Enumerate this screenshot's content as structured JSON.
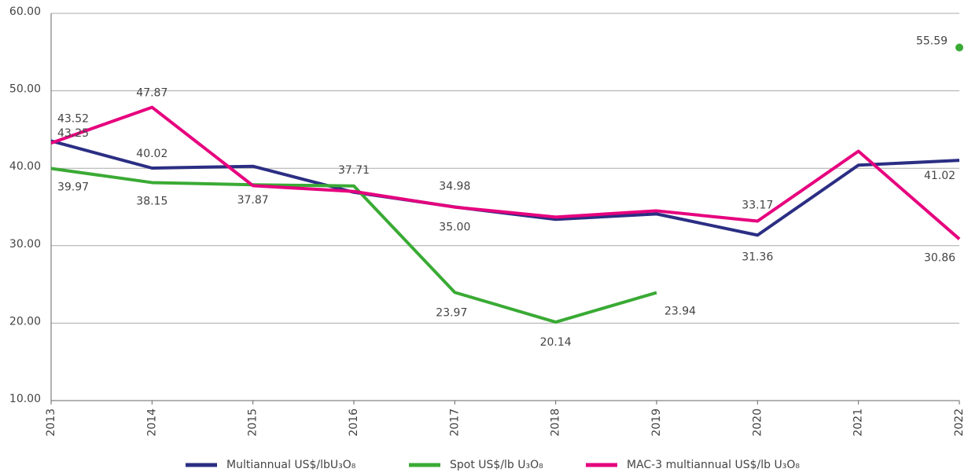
{
  "chart_data": {
    "type": "line",
    "categories": [
      "2013",
      "2014",
      "2015",
      "2016",
      "2017",
      "2018",
      "2019",
      "2020",
      "2021",
      "2022"
    ],
    "series": [
      {
        "name": "Multiannual US$/lbU₃O₈",
        "color": "#2b2e83",
        "values": [
          43.52,
          40.02,
          40.25,
          36.9,
          35.0,
          33.4,
          34.1,
          31.36,
          40.4,
          41.02
        ],
        "value_labels": [
          "43.52",
          "40.02",
          null,
          null,
          "35.00",
          null,
          null,
          "31.36",
          null,
          "41.02"
        ]
      },
      {
        "name": "Spot US$/lb U₃O₈",
        "color": "#3aaa35",
        "values": [
          39.97,
          38.15,
          37.87,
          37.71,
          23.97,
          20.14,
          23.94,
          null,
          null,
          55.59
        ],
        "value_labels": [
          "39.97",
          "38.15",
          "37.87",
          "37.71",
          "23.97",
          "20.14",
          "23.94",
          null,
          null,
          "55.59"
        ]
      },
      {
        "name": "MAC-3 multiannual US$/lb U₃O₈",
        "color": "#e6007e",
        "values": [
          43.25,
          47.87,
          37.75,
          37.0,
          34.98,
          33.7,
          34.5,
          33.17,
          42.2,
          30.86
        ],
        "value_labels": [
          "43.25",
          "47.87",
          null,
          null,
          "34.98",
          null,
          null,
          "33.17",
          null,
          "30.86"
        ]
      }
    ],
    "ylim": [
      10,
      60
    ],
    "yticks": [
      {
        "value": 10,
        "label": "10.00"
      },
      {
        "value": 20,
        "label": "20.00"
      },
      {
        "value": 30,
        "label": "30.00"
      },
      {
        "value": 40,
        "label": "40.00"
      },
      {
        "value": 50,
        "label": "50.00"
      },
      {
        "value": 60,
        "label": "60.00"
      }
    ],
    "grid": true,
    "legend": "bottom"
  }
}
